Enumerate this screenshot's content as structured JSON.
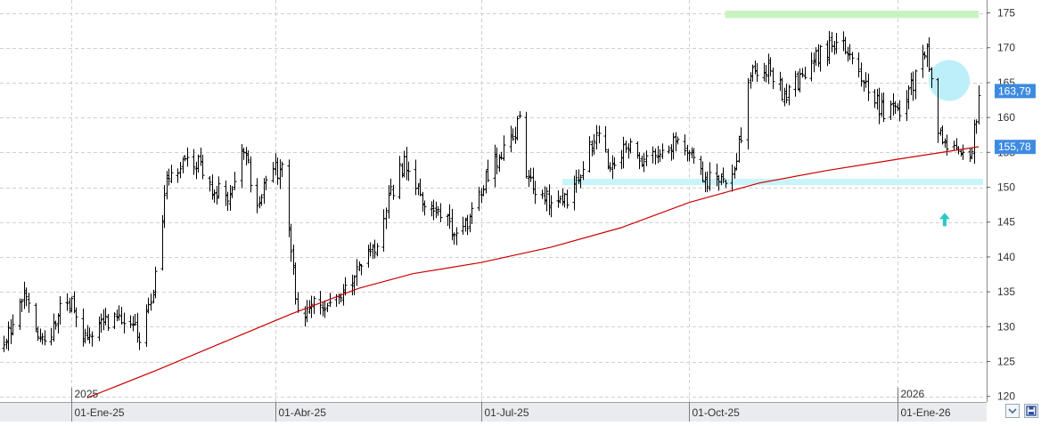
{
  "colors": {
    "background": "#ffffff",
    "bars": "#000000",
    "moving_average": "#cc0000",
    "grid": "#d0d0d0",
    "support_zone": "#c8f4fa",
    "resistance_zone": "#c9f2c1",
    "highlight_circle": "#bdeffa",
    "up_arrow": "#2cc7c7",
    "price_label": "#3d8be0",
    "axis_bar": "#e9ebee"
  },
  "icons": {
    "zoom_control": "chevron-down-icon",
    "save_control": "floppy-disk-icon"
  },
  "chart_data": {
    "type": "ohlc",
    "y_axis": {
      "position": "right",
      "range": [
        119,
        176
      ],
      "ticks": [
        "120",
        "125",
        "130",
        "135",
        "140",
        "145",
        "150",
        "155",
        "160",
        "165",
        "170",
        "175"
      ]
    },
    "x_axis": {
      "range": [
        "2024-12-02",
        "2026-02-06"
      ],
      "ticks": [
        {
          "label": "01-Ene-25",
          "date": "2025-01-01"
        },
        {
          "label": "01-Abr-25",
          "date": "2025-04-01"
        },
        {
          "label": "01-Jul-25",
          "date": "2025-07-01"
        },
        {
          "label": "01-Oct-25",
          "date": "2025-10-01"
        },
        {
          "label": "01-Ene-26",
          "date": "2026-01-01"
        }
      ],
      "year_labels": [
        {
          "label": "2025",
          "date": "2025-01-01"
        },
        {
          "label": "2026",
          "date": "2026-01-01"
        }
      ]
    },
    "grid": true,
    "price_labels": [
      {
        "text": "163,79",
        "value": 163.79
      },
      {
        "text": "155,78",
        "value": 155.78
      }
    ],
    "price_path": [
      [
        "2024-12-02",
        127.2
      ],
      [
        "2024-12-10",
        134.6
      ],
      [
        "2024-12-20",
        127.6
      ],
      [
        "2024-12-30",
        134.1
      ],
      [
        "2025-01-08",
        128.2
      ],
      [
        "2025-01-20",
        131.8
      ],
      [
        "2025-02-01",
        128.6
      ],
      [
        "2025-02-08",
        138.7
      ],
      [
        "2025-02-12",
        150.6
      ],
      [
        "2025-02-18",
        153.3
      ],
      [
        "2025-02-26",
        153.7
      ],
      [
        "2025-03-03",
        149.8
      ],
      [
        "2025-03-12",
        148.8
      ],
      [
        "2025-03-18",
        155.5
      ],
      [
        "2025-03-24",
        147.0
      ],
      [
        "2025-03-30",
        152.8
      ],
      [
        "2025-04-05",
        152.4
      ],
      [
        "2025-04-08",
        139.6
      ],
      [
        "2025-04-12",
        130.8
      ],
      [
        "2025-04-16",
        132.8
      ],
      [
        "2025-04-24",
        133.6
      ],
      [
        "2025-05-02",
        135.6
      ],
      [
        "2025-05-10",
        139.4
      ],
      [
        "2025-05-16",
        141.9
      ],
      [
        "2025-05-22",
        149.0
      ],
      [
        "2025-05-28",
        153.7
      ],
      [
        "2025-06-05",
        148.1
      ],
      [
        "2025-06-12",
        146.3
      ],
      [
        "2025-06-20",
        143.1
      ],
      [
        "2025-06-26",
        145.1
      ],
      [
        "2025-07-02",
        150.6
      ],
      [
        "2025-07-10",
        155.2
      ],
      [
        "2025-07-18",
        159.0
      ],
      [
        "2025-07-22",
        150.4
      ],
      [
        "2025-08-01",
        147.9
      ],
      [
        "2025-08-08",
        148.3
      ],
      [
        "2025-08-14",
        151.8
      ],
      [
        "2025-08-22",
        159.0
      ],
      [
        "2025-08-26",
        153.1
      ],
      [
        "2025-09-05",
        157.1
      ],
      [
        "2025-09-12",
        153.3
      ],
      [
        "2025-09-20",
        156.0
      ],
      [
        "2025-09-30",
        155.8
      ],
      [
        "2025-10-08",
        151.2
      ],
      [
        "2025-10-14",
        150.6
      ],
      [
        "2025-10-22",
        153.7
      ],
      [
        "2025-10-28",
        166.0
      ],
      [
        "2025-11-05",
        167.4
      ],
      [
        "2025-11-12",
        163.2
      ],
      [
        "2025-11-20",
        166.0
      ],
      [
        "2025-11-28",
        169.0
      ],
      [
        "2025-12-06",
        171.4
      ],
      [
        "2025-12-12",
        169.7
      ],
      [
        "2025-12-20",
        163.1
      ],
      [
        "2025-12-26",
        160.8
      ],
      [
        "2026-01-02",
        160.4
      ],
      [
        "2026-01-08",
        164.8
      ],
      [
        "2026-01-14",
        169.5
      ],
      [
        "2026-01-20",
        156.9
      ],
      [
        "2026-01-26",
        156.0
      ],
      [
        "2026-01-30",
        154.5
      ],
      [
        "2026-02-03",
        155.3
      ],
      [
        "2026-02-06",
        162.9
      ]
    ],
    "moving_average": {
      "points": [
        [
          "2025-01-08",
          119.8
        ],
        [
          "2025-02-08",
          123.8
        ],
        [
          "2025-03-08",
          127.6
        ],
        [
          "2025-04-08",
          131.8
        ],
        [
          "2025-05-08",
          135.5
        ],
        [
          "2025-06-01",
          137.6
        ],
        [
          "2025-07-01",
          139.2
        ],
        [
          "2025-08-01",
          141.4
        ],
        [
          "2025-09-01",
          144.2
        ],
        [
          "2025-10-01",
          147.8
        ],
        [
          "2025-11-01",
          150.6
        ],
        [
          "2025-12-01",
          152.4
        ],
        [
          "2026-01-01",
          154.0
        ],
        [
          "2026-02-06",
          155.8
        ]
      ]
    },
    "annotations": {
      "resistance_zone": {
        "from": "2025-10-17",
        "to": "2026-02-06",
        "low": 174.2,
        "high": 175.0
      },
      "support_zone": {
        "from": "2025-08-06",
        "to": "2026-02-08",
        "low": 150.3,
        "high": 151.2
      },
      "highlight_circle": {
        "date": "2026-01-24",
        "value": 165.3
      },
      "up_arrow": {
        "date": "2026-01-22",
        "value": 145.3
      }
    }
  }
}
